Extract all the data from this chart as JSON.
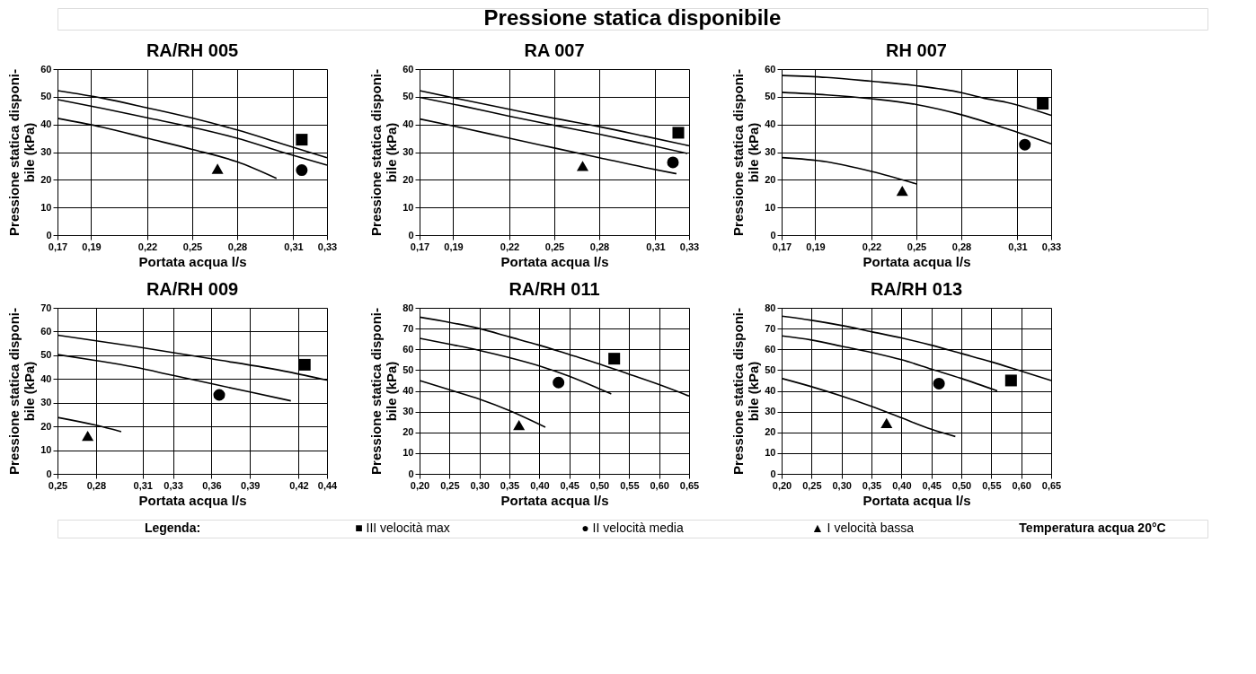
{
  "chart_data": [
    {
      "type": "other",
      "title": "Pressione statica disponibile"
    },
    {
      "type": "line",
      "title": "RA/RH 005",
      "xlabel": "Portata acqua l/s",
      "ylabel": "Pressione statica disponi-\nbile (kPa)",
      "grid": true,
      "xlim": [
        0.17,
        0.33
      ],
      "xticks": [
        {
          "value": 0.17,
          "label": "0,17"
        },
        {
          "value": 0.19,
          "label": "0,19"
        },
        {
          "value": 0.22333,
          "label": "0,22"
        },
        {
          "value": 0.25,
          "label": "0,25"
        },
        {
          "value": 0.27667,
          "label": "0,28"
        },
        {
          "value": 0.31,
          "label": "0,31"
        },
        {
          "value": 0.33,
          "label": "0,33"
        }
      ],
      "ylim": [
        0,
        60
      ],
      "yticks": [
        0,
        10,
        20,
        30,
        40,
        50,
        60
      ],
      "series": [
        {
          "type": "line",
          "color": "#000000",
          "x": [
            0.17,
            0.19667,
            0.22333,
            0.25,
            0.27667,
            0.30333,
            0.33
          ],
          "values": [
            52.2,
            49.5,
            46,
            42.3,
            38,
            33,
            28
          ]
        },
        {
          "type": "line",
          "color": "#000000",
          "x": [
            0.17,
            0.19667,
            0.22333,
            0.25,
            0.27667,
            0.30333,
            0.33
          ],
          "values": [
            49,
            45.8,
            42.4,
            39,
            35,
            30,
            25.3
          ]
        },
        {
          "type": "line",
          "color": "#000000",
          "x": [
            0.17,
            0.19667,
            0.22333,
            0.25,
            0.27667,
            0.3
          ],
          "values": [
            42.2,
            39,
            35,
            31,
            26.5,
            20.5
          ]
        },
        {
          "type": "scatter",
          "marker": "square",
          "color": "#000000",
          "x": [
            0.315
          ],
          "values": [
            34.5
          ]
        },
        {
          "type": "scatter",
          "marker": "circle",
          "color": "#000000",
          "x": [
            0.315
          ],
          "values": [
            23.5
          ]
        },
        {
          "type": "scatter",
          "marker": "triangle",
          "color": "#000000",
          "x": [
            0.265
          ],
          "values": [
            24
          ]
        }
      ]
    },
    {
      "type": "line",
      "title": "RA 007",
      "xlabel": "Portata acqua l/s",
      "ylabel": "Pressione statica disponi-\nbile (kPa)",
      "grid": true,
      "xlim": [
        0.17,
        0.33
      ],
      "xticks": [
        {
          "value": 0.17,
          "label": "0,17"
        },
        {
          "value": 0.19,
          "label": "0,19"
        },
        {
          "value": 0.22333,
          "label": "0,22"
        },
        {
          "value": 0.25,
          "label": "0,25"
        },
        {
          "value": 0.27667,
          "label": "0,28"
        },
        {
          "value": 0.31,
          "label": "0,31"
        },
        {
          "value": 0.33,
          "label": "0,33"
        }
      ],
      "ylim": [
        0,
        60
      ],
      "yticks": [
        0,
        10,
        20,
        30,
        40,
        50,
        60
      ],
      "series": [
        {
          "type": "line",
          "color": "#000000",
          "x": [
            0.17,
            0.19667,
            0.22333,
            0.25,
            0.27667,
            0.30333,
            0.33
          ],
          "values": [
            52.2,
            48.8,
            45.5,
            42.2,
            39.2,
            35.8,
            32.3
          ]
        },
        {
          "type": "line",
          "color": "#000000",
          "x": [
            0.17,
            0.19667,
            0.22333,
            0.25,
            0.27667,
            0.30333,
            0.329
          ],
          "values": [
            49.8,
            46.5,
            43,
            39.7,
            36.5,
            33,
            29.5
          ]
        },
        {
          "type": "line",
          "color": "#000000",
          "x": [
            0.17,
            0.19667,
            0.22333,
            0.25,
            0.27667,
            0.30333,
            0.3225
          ],
          "values": [
            42,
            38.6,
            35,
            31.5,
            28,
            24.5,
            22.2
          ]
        },
        {
          "type": "scatter",
          "marker": "square",
          "color": "#000000",
          "x": [
            0.3236
          ],
          "values": [
            37
          ]
        },
        {
          "type": "scatter",
          "marker": "circle",
          "color": "#000000",
          "x": [
            0.3204
          ],
          "values": [
            26.3
          ]
        },
        {
          "type": "scatter",
          "marker": "triangle",
          "color": "#000000",
          "x": [
            0.2668
          ],
          "values": [
            25
          ]
        }
      ]
    },
    {
      "type": "line",
      "title": "RH 007",
      "xlabel": "Portata acqua l/s",
      "ylabel": "Pressione statica disponi-\nbile (kPa)",
      "grid": true,
      "xlim": [
        0.17,
        0.33
      ],
      "xticks": [
        {
          "value": 0.17,
          "label": "0,17"
        },
        {
          "value": 0.19,
          "label": "0,19"
        },
        {
          "value": 0.22333,
          "label": "0,22"
        },
        {
          "value": 0.25,
          "label": "0,25"
        },
        {
          "value": 0.27667,
          "label": "0,28"
        },
        {
          "value": 0.31,
          "label": "0,31"
        },
        {
          "value": 0.33,
          "label": "0,33"
        }
      ],
      "ylim": [
        0,
        60
      ],
      "yticks": [
        0,
        10,
        20,
        30,
        40,
        50,
        60
      ],
      "series": [
        {
          "type": "line",
          "color": "#000000",
          "x": [
            0.17,
            0.19667,
            0.22333,
            0.25,
            0.27667,
            0.29,
            0.30333,
            0.33
          ],
          "values": [
            57.7,
            57,
            55.6,
            54,
            51.5,
            49.5,
            48,
            43.3
          ]
        },
        {
          "type": "line",
          "color": "#000000",
          "x": [
            0.17,
            0.19667,
            0.22333,
            0.25,
            0.27667,
            0.30333,
            0.33
          ],
          "values": [
            51.6,
            50.7,
            49.3,
            47.2,
            43.5,
            38.5,
            33
          ]
        },
        {
          "type": "line",
          "color": "#000000",
          "x": [
            0.17,
            0.19667,
            0.22333,
            0.25
          ],
          "values": [
            28,
            26.5,
            23,
            18.5
          ]
        },
        {
          "type": "scatter",
          "marker": "square",
          "color": "#000000",
          "x": [
            0.325
          ],
          "values": [
            47.5
          ]
        },
        {
          "type": "scatter",
          "marker": "circle",
          "color": "#000000",
          "x": [
            0.3144
          ],
          "values": [
            32.7
          ]
        },
        {
          "type": "scatter",
          "marker": "triangle",
          "color": "#000000",
          "x": [
            0.2416
          ],
          "values": [
            16
          ]
        }
      ]
    },
    {
      "type": "line",
      "title": "RA/RH 009",
      "xlabel": "Portata acqua l/s",
      "ylabel": "Pressione statica disponi-\nbile (kPa)",
      "grid": true,
      "xlim": [
        0.25,
        0.44
      ],
      "xticks": [
        {
          "value": 0.25,
          "label": "0,25"
        },
        {
          "value": 0.27714,
          "label": "0,28"
        },
        {
          "value": 0.31,
          "label": "0,31"
        },
        {
          "value": 0.33143,
          "label": "0,33"
        },
        {
          "value": 0.35857,
          "label": "0,36"
        },
        {
          "value": 0.38571,
          "label": "0,39"
        },
        {
          "value": 0.42,
          "label": "0,42"
        },
        {
          "value": 0.44,
          "label": "0,44"
        }
      ],
      "ylim": [
        0,
        70
      ],
      "yticks": [
        0,
        10,
        20,
        30,
        40,
        50,
        60,
        70
      ],
      "series": [
        {
          "type": "line",
          "color": "#000000",
          "x": [
            0.25,
            0.30429,
            0.35857,
            0.41286,
            0.44
          ],
          "values": [
            58.5,
            53.7,
            48.5,
            43,
            39.5
          ]
        },
        {
          "type": "line",
          "color": "#000000",
          "x": [
            0.25,
            0.27714,
            0.30429,
            0.33143,
            0.35857,
            0.38571,
            0.4145
          ],
          "values": [
            50.3,
            47.8,
            45,
            41.5,
            38,
            34.5,
            30.8
          ]
        },
        {
          "type": "line",
          "color": "#000000",
          "x": [
            0.25,
            0.27714,
            0.2949
          ],
          "values": [
            23.8,
            20.5,
            17.8
          ]
        },
        {
          "type": "scatter",
          "marker": "square",
          "color": "#000000",
          "x": [
            0.4243
          ],
          "values": [
            46
          ]
        },
        {
          "type": "scatter",
          "marker": "circle",
          "color": "#000000",
          "x": [
            0.364
          ],
          "values": [
            33.3
          ]
        },
        {
          "type": "scatter",
          "marker": "triangle",
          "color": "#000000",
          "x": [
            0.2713
          ],
          "values": [
            16
          ]
        }
      ]
    },
    {
      "type": "line",
      "title": "RA/RH 011",
      "xlabel": "Portata acqua l/s",
      "ylabel": "Pressione statica disponi-\nbile (kPa)",
      "grid": true,
      "xlim": [
        0.2,
        0.65
      ],
      "xticks": [
        {
          "value": 0.2,
          "label": "0,20"
        },
        {
          "value": 0.25,
          "label": "0,25"
        },
        {
          "value": 0.3,
          "label": "0,30"
        },
        {
          "value": 0.35,
          "label": "0,35"
        },
        {
          "value": 0.4,
          "label": "0,40"
        },
        {
          "value": 0.45,
          "label": "0,45"
        },
        {
          "value": 0.5,
          "label": "0,50"
        },
        {
          "value": 0.55,
          "label": "0,55"
        },
        {
          "value": 0.6,
          "label": "0,60"
        },
        {
          "value": 0.65,
          "label": "0,65"
        }
      ],
      "ylim": [
        0,
        80
      ],
      "yticks": [
        0,
        10,
        20,
        30,
        40,
        50,
        60,
        70,
        80
      ],
      "series": [
        {
          "type": "line",
          "color": "#000000",
          "x": [
            0.2,
            0.25,
            0.3,
            0.35,
            0.4,
            0.45,
            0.5,
            0.55,
            0.6,
            0.65
          ],
          "values": [
            75.5,
            73,
            70,
            66,
            62,
            57.5,
            53,
            48,
            43,
            37.5
          ]
        },
        {
          "type": "line",
          "color": "#000000",
          "x": [
            0.2,
            0.25,
            0.3,
            0.35,
            0.4,
            0.45,
            0.5,
            0.52
          ],
          "values": [
            65.3,
            62.5,
            59.5,
            56,
            52,
            47,
            41,
            38.5
          ]
        },
        {
          "type": "line",
          "color": "#000000",
          "x": [
            0.2,
            0.25,
            0.3,
            0.35,
            0.41
          ],
          "values": [
            45,
            40.5,
            36,
            30.5,
            22.5
          ]
        },
        {
          "type": "scatter",
          "marker": "square",
          "color": "#000000",
          "x": [
            0.525
          ],
          "values": [
            55.5
          ]
        },
        {
          "type": "scatter",
          "marker": "circle",
          "color": "#000000",
          "x": [
            0.432
          ],
          "values": [
            44
          ]
        },
        {
          "type": "scatter",
          "marker": "triangle",
          "color": "#000000",
          "x": [
            0.366
          ],
          "values": [
            23.5
          ]
        }
      ]
    },
    {
      "type": "line",
      "title": "RA/RH 013",
      "xlabel": "Portata acqua l/s",
      "ylabel": "Pressione statica disponi-\nbile (kPa)",
      "grid": true,
      "xlim": [
        0.2,
        0.65
      ],
      "xticks": [
        {
          "value": 0.2,
          "label": "0,20"
        },
        {
          "value": 0.25,
          "label": "0,25"
        },
        {
          "value": 0.3,
          "label": "0,30"
        },
        {
          "value": 0.35,
          "label": "0,35"
        },
        {
          "value": 0.4,
          "label": "0,40"
        },
        {
          "value": 0.45,
          "label": "0,45"
        },
        {
          "value": 0.5,
          "label": "0,50"
        },
        {
          "value": 0.55,
          "label": "0,55"
        },
        {
          "value": 0.6,
          "label": "0,60"
        },
        {
          "value": 0.65,
          "label": "0,65"
        }
      ],
      "ylim": [
        0,
        80
      ],
      "yticks": [
        0,
        10,
        20,
        30,
        40,
        50,
        60,
        70,
        80
      ],
      "series": [
        {
          "type": "line",
          "color": "#000000",
          "x": [
            0.2,
            0.25,
            0.3,
            0.35,
            0.4,
            0.45,
            0.5,
            0.55,
            0.6,
            0.65
          ],
          "values": [
            76,
            74,
            71.5,
            68.5,
            65.5,
            62,
            58,
            54,
            49.5,
            45
          ]
        },
        {
          "type": "line",
          "color": "#000000",
          "x": [
            0.2,
            0.25,
            0.3,
            0.35,
            0.4,
            0.45,
            0.5,
            0.56
          ],
          "values": [
            66.5,
            64.5,
            61.5,
            58.5,
            55,
            50.5,
            46,
            40
          ]
        },
        {
          "type": "line",
          "color": "#000000",
          "x": [
            0.2,
            0.25,
            0.3,
            0.35,
            0.4,
            0.45,
            0.49
          ],
          "values": [
            46,
            42,
            37.5,
            32.5,
            27,
            21.5,
            18
          ]
        },
        {
          "type": "scatter",
          "marker": "square",
          "color": "#000000",
          "x": [
            0.583
          ],
          "values": [
            45
          ]
        },
        {
          "type": "scatter",
          "marker": "circle",
          "color": "#000000",
          "x": [
            0.4627
          ],
          "values": [
            43.5
          ]
        },
        {
          "type": "scatter",
          "marker": "triangle",
          "color": "#000000",
          "x": [
            0.3752
          ],
          "values": [
            24.5
          ]
        }
      ]
    },
    {
      "type": "other",
      "annotations": [
        "Legenda:",
        "■  III  velocità max",
        "●  II  velocità media",
        "▲  I  velocità bassa",
        "Temperatura acqua 20°C"
      ]
    }
  ]
}
